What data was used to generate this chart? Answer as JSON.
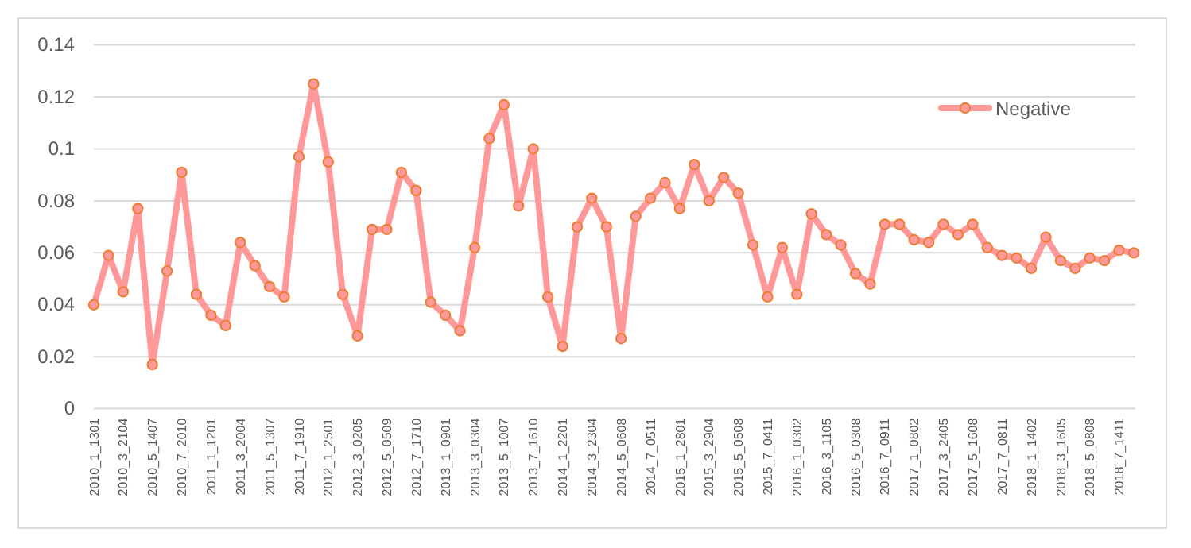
{
  "chart_data": {
    "type": "line",
    "categories": [
      "2010_1_1301",
      null,
      "2010_3_2104",
      null,
      "2010_5_1407",
      null,
      "2010_7_2010",
      null,
      "2011_1_1201",
      null,
      "2011_3_2004",
      null,
      "2011_5_1307",
      null,
      "2011_7_1910",
      null,
      "2012_1_2501",
      null,
      "2012_3_0205",
      null,
      "2012_5_0509",
      null,
      "2012_7_1710",
      null,
      "2013_1_0901",
      null,
      "2013_3_0304",
      null,
      "2013_5_1007",
      null,
      "2013_7_1610",
      null,
      "2014_1_2201",
      null,
      "2014_3_2304",
      null,
      "2014_5_0608",
      null,
      "2014_7_0511",
      null,
      "2015_1_2801",
      null,
      "2015_3_2904",
      null,
      "2015_5_0508",
      null,
      "2015_7_0411",
      null,
      "2016_1_0302",
      null,
      "2016_3_1105",
      null,
      "2016_5_0308",
      null,
      "2016_7_0911",
      null,
      "2017_1_0802",
      null,
      "2017_3_2405",
      null,
      "2017_5_1608",
      null,
      "2017_7_0811",
      null,
      "2018_1_1402",
      null,
      "2018_3_1605",
      null,
      "2018_5_0808",
      null,
      "2018_7_1411",
      null
    ],
    "series": [
      {
        "name": "Negative",
        "color": "#ff9999",
        "values": [
          0.04,
          0.059,
          0.045,
          0.077,
          0.017,
          0.053,
          0.091,
          0.044,
          0.036,
          0.032,
          0.064,
          0.055,
          0.047,
          0.043,
          0.097,
          0.125,
          0.095,
          0.044,
          0.028,
          0.069,
          0.069,
          0.091,
          0.084,
          0.041,
          0.036,
          0.03,
          0.062,
          0.104,
          0.117,
          0.078,
          0.1,
          0.043,
          0.024,
          0.07,
          0.081,
          0.07,
          0.027,
          0.074,
          0.081,
          0.087,
          0.077,
          0.094,
          0.08,
          0.089,
          0.083,
          0.063,
          0.043,
          0.062,
          0.044,
          0.075,
          0.067,
          0.063,
          0.052,
          0.048,
          0.071,
          0.071,
          0.065,
          0.064,
          0.071,
          0.067,
          0.071,
          0.062,
          0.059,
          0.058,
          0.054,
          0.066,
          0.057,
          0.054,
          0.058,
          0.057,
          0.061,
          0.06
        ]
      }
    ],
    "ylim": [
      0,
      0.14
    ],
    "yticks": [
      0,
      0.02,
      0.04,
      0.06,
      0.08,
      0.1,
      0.12,
      0.14
    ],
    "grid": "y",
    "legend": "top right",
    "marker": "circle",
    "line_style": "solid"
  }
}
